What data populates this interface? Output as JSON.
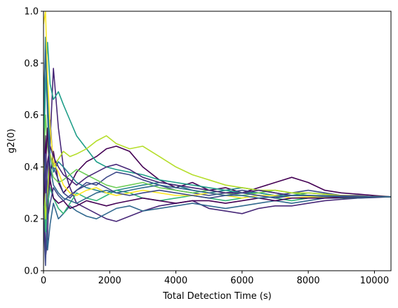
{
  "chart_data": {
    "type": "line",
    "title": "",
    "xlabel": "Total Detection Time (s)",
    "ylabel": "g2(0)",
    "xlim": [
      0,
      10500
    ],
    "ylim": [
      0.0,
      1.0
    ],
    "xticks": [
      0,
      2000,
      4000,
      6000,
      8000,
      10000
    ],
    "xtick_labels": [
      "0",
      "2000",
      "4000",
      "6000",
      "8000",
      "10000"
    ],
    "yticks": [
      0.0,
      0.2,
      0.4,
      0.6,
      0.8,
      1.0
    ],
    "ytick_labels": [
      "0.0",
      "0.2",
      "0.4",
      "0.6",
      "0.8",
      "1.0"
    ],
    "grid": false,
    "legend": "none",
    "colormap": "viridis",
    "colors": [
      "#440154",
      "#482878",
      "#3e4989",
      "#31688e",
      "#26828e",
      "#1f9e89",
      "#35b779",
      "#6ece58",
      "#b5de2b",
      "#fde725"
    ],
    "series": [
      {
        "x": [
          0,
          60,
          120,
          200,
          300,
          450,
          600,
          800,
          1000,
          1300,
          1600,
          1900,
          2200,
          2600,
          3000,
          3500,
          4000,
          4500,
          5000,
          5500,
          6000,
          6500,
          7000,
          7500,
          8000,
          8500,
          9000,
          9500,
          10000,
          10500
        ],
        "y": [
          0.3,
          0.52,
          0.22,
          0.36,
          0.46,
          0.34,
          0.3,
          0.33,
          0.38,
          0.42,
          0.44,
          0.47,
          0.48,
          0.46,
          0.4,
          0.35,
          0.32,
          0.34,
          0.31,
          0.32,
          0.3,
          0.32,
          0.34,
          0.36,
          0.34,
          0.31,
          0.3,
          0.295,
          0.29,
          0.285
        ]
      },
      {
        "x": [
          0,
          60,
          120,
          200,
          300,
          450,
          600,
          800,
          1000,
          1300,
          1600,
          1900,
          2200,
          2600,
          3000,
          3500,
          4000,
          4500,
          5000,
          5500,
          6000,
          6500,
          7000,
          7500,
          8000,
          8500,
          9000,
          9500,
          10000,
          10500
        ],
        "y": [
          0.4,
          0.05,
          0.12,
          0.5,
          0.78,
          0.55,
          0.4,
          0.32,
          0.26,
          0.24,
          0.22,
          0.2,
          0.19,
          0.21,
          0.23,
          0.25,
          0.26,
          0.27,
          0.24,
          0.23,
          0.22,
          0.24,
          0.25,
          0.25,
          0.26,
          0.27,
          0.275,
          0.28,
          0.282,
          0.285
        ]
      },
      {
        "x": [
          0,
          60,
          120,
          200,
          300,
          450,
          600,
          800,
          1000,
          1300,
          1600,
          1900,
          2200,
          2600,
          3000,
          3500,
          4000,
          4500,
          5000,
          5500,
          6000,
          6500,
          7000,
          7500,
          8000,
          8500,
          9000,
          9500,
          10000,
          10500
        ],
        "y": [
          0.2,
          0.02,
          0.3,
          0.58,
          0.4,
          0.35,
          0.3,
          0.28,
          0.31,
          0.34,
          0.33,
          0.36,
          0.38,
          0.37,
          0.35,
          0.33,
          0.31,
          0.3,
          0.29,
          0.3,
          0.31,
          0.3,
          0.29,
          0.3,
          0.31,
          0.3,
          0.29,
          0.29,
          0.285,
          0.285
        ]
      },
      {
        "x": [
          0,
          60,
          120,
          200,
          300,
          450,
          600,
          800,
          1000,
          1300,
          1600,
          1900,
          2200,
          2600,
          3000,
          3500,
          4000,
          4500,
          5000,
          5500,
          6000,
          6500,
          7000,
          7500,
          8000,
          8500,
          9000,
          9500,
          10000,
          10500
        ],
        "y": [
          0.6,
          0.25,
          0.08,
          0.18,
          0.26,
          0.2,
          0.22,
          0.25,
          0.23,
          0.21,
          0.2,
          0.22,
          0.24,
          0.25,
          0.23,
          0.24,
          0.25,
          0.26,
          0.25,
          0.24,
          0.25,
          0.26,
          0.27,
          0.26,
          0.27,
          0.28,
          0.28,
          0.28,
          0.283,
          0.285
        ]
      },
      {
        "x": [
          0,
          60,
          120,
          200,
          300,
          450,
          600,
          800,
          1000,
          1300,
          1600,
          1900,
          2200,
          2600,
          3000,
          3500,
          4000,
          4500,
          5000,
          5500,
          6000,
          6500,
          7000,
          7500,
          8000,
          8500,
          9000,
          9500,
          10000,
          10500
        ],
        "y": [
          0.5,
          0.9,
          0.7,
          0.45,
          0.38,
          0.42,
          0.4,
          0.37,
          0.34,
          0.32,
          0.31,
          0.3,
          0.31,
          0.32,
          0.33,
          0.34,
          0.33,
          0.31,
          0.3,
          0.31,
          0.32,
          0.31,
          0.3,
          0.29,
          0.3,
          0.295,
          0.29,
          0.288,
          0.286,
          0.285
        ]
      },
      {
        "x": [
          0,
          60,
          120,
          200,
          300,
          450,
          600,
          800,
          1000,
          1300,
          1600,
          1900,
          2200,
          2600,
          3000,
          3500,
          4000,
          4500,
          5000,
          5500,
          6000,
          6500,
          7000,
          7500,
          8000,
          8500,
          9000,
          9500,
          10000,
          10500
        ],
        "y": [
          0.45,
          0.7,
          0.88,
          0.72,
          0.66,
          0.69,
          0.64,
          0.58,
          0.52,
          0.47,
          0.42,
          0.4,
          0.39,
          0.38,
          0.37,
          0.35,
          0.34,
          0.33,
          0.32,
          0.31,
          0.3,
          0.3,
          0.29,
          0.29,
          0.29,
          0.288,
          0.287,
          0.286,
          0.285,
          0.285
        ]
      },
      {
        "x": [
          0,
          60,
          120,
          200,
          300,
          450,
          600,
          800,
          1000,
          1300,
          1600,
          1900,
          2200,
          2600,
          3000,
          3500,
          4000,
          4500,
          5000,
          5500,
          6000,
          6500,
          7000,
          7500,
          8000,
          8500,
          9000,
          9500,
          10000,
          10500
        ],
        "y": [
          0.35,
          0.15,
          0.25,
          0.32,
          0.28,
          0.24,
          0.22,
          0.26,
          0.3,
          0.28,
          0.27,
          0.29,
          0.31,
          0.3,
          0.28,
          0.27,
          0.28,
          0.29,
          0.28,
          0.27,
          0.28,
          0.29,
          0.28,
          0.27,
          0.28,
          0.285,
          0.28,
          0.283,
          0.284,
          0.285
        ]
      },
      {
        "x": [
          0,
          60,
          120,
          200,
          300,
          450,
          600,
          800,
          1000,
          1300,
          1600,
          1900,
          2200,
          2600,
          3000,
          3500,
          4000,
          4500,
          5000,
          5500,
          6000,
          6500,
          7000,
          7500,
          8000,
          8500,
          9000,
          9500,
          10000,
          10500
        ],
        "y": [
          0.38,
          0.6,
          0.48,
          0.4,
          0.36,
          0.34,
          0.35,
          0.37,
          0.39,
          0.37,
          0.35,
          0.33,
          0.32,
          0.33,
          0.34,
          0.32,
          0.31,
          0.3,
          0.31,
          0.3,
          0.29,
          0.3,
          0.31,
          0.3,
          0.29,
          0.29,
          0.288,
          0.287,
          0.286,
          0.285
        ]
      },
      {
        "x": [
          0,
          60,
          120,
          200,
          300,
          450,
          600,
          800,
          1000,
          1300,
          1600,
          1900,
          2200,
          2600,
          3000,
          3500,
          4000,
          4500,
          5000,
          5500,
          6000,
          6500,
          7000,
          7500,
          8000,
          8500,
          9000,
          9500,
          10000,
          10500
        ],
        "y": [
          0.42,
          0.2,
          0.3,
          0.45,
          0.4,
          0.43,
          0.46,
          0.44,
          0.45,
          0.47,
          0.5,
          0.52,
          0.49,
          0.47,
          0.48,
          0.44,
          0.4,
          0.37,
          0.35,
          0.33,
          0.32,
          0.31,
          0.31,
          0.3,
          0.3,
          0.295,
          0.29,
          0.288,
          0.286,
          0.285
        ]
      },
      {
        "x": [
          0,
          60,
          120,
          200,
          300,
          450,
          600,
          800,
          1000,
          1300,
          1600,
          1900,
          2200,
          2600,
          3000,
          3500,
          4000,
          4500,
          5000,
          5500,
          6000,
          6500,
          7000,
          7500,
          8000,
          8500,
          9000,
          9500,
          10000,
          10500
        ],
        "y": [
          0.95,
          1.0,
          0.75,
          0.55,
          0.42,
          0.38,
          0.33,
          0.3,
          0.29,
          0.31,
          0.32,
          0.3,
          0.29,
          0.3,
          0.31,
          0.3,
          0.29,
          0.29,
          0.3,
          0.29,
          0.28,
          0.29,
          0.29,
          0.28,
          0.285,
          0.285,
          0.284,
          0.285,
          0.285,
          0.285
        ]
      },
      {
        "x": [
          0,
          60,
          120,
          200,
          300,
          450,
          600,
          800,
          1000,
          1300,
          1600,
          1900,
          2200,
          2600,
          3000,
          3500,
          4000,
          4500,
          5000,
          5500,
          6000,
          6500,
          7000,
          7500,
          8000,
          8500,
          9000,
          9500,
          10000,
          10500
        ],
        "y": [
          0.25,
          0.4,
          0.55,
          0.35,
          0.28,
          0.26,
          0.27,
          0.24,
          0.25,
          0.27,
          0.26,
          0.25,
          0.26,
          0.27,
          0.28,
          0.27,
          0.26,
          0.27,
          0.27,
          0.26,
          0.27,
          0.28,
          0.27,
          0.28,
          0.28,
          0.28,
          0.282,
          0.283,
          0.284,
          0.285
        ]
      },
      {
        "x": [
          0,
          60,
          120,
          200,
          300,
          450,
          600,
          800,
          1000,
          1300,
          1600,
          1900,
          2200,
          2600,
          3000,
          3500,
          4000,
          4500,
          5000,
          5500,
          6000,
          6500,
          7000,
          7500,
          8000,
          8500,
          9000,
          9500,
          10000,
          10500
        ],
        "y": [
          0.55,
          0.3,
          0.42,
          0.48,
          0.44,
          0.4,
          0.37,
          0.35,
          0.33,
          0.36,
          0.38,
          0.4,
          0.41,
          0.39,
          0.36,
          0.34,
          0.33,
          0.32,
          0.31,
          0.3,
          0.3,
          0.31,
          0.3,
          0.29,
          0.29,
          0.289,
          0.288,
          0.287,
          0.286,
          0.285
        ]
      },
      {
        "x": [
          0,
          60,
          120,
          200,
          300,
          450,
          600,
          800,
          1000,
          1300,
          1600,
          1900,
          2200,
          2600,
          3000,
          3500,
          4000,
          4500,
          5000,
          5500,
          6000,
          6500,
          7000,
          7500,
          8000,
          8500,
          9000,
          9500,
          10000,
          10500
        ],
        "y": [
          0.3,
          0.45,
          0.2,
          0.26,
          0.32,
          0.29,
          0.27,
          0.29,
          0.31,
          0.33,
          0.34,
          0.32,
          0.3,
          0.29,
          0.3,
          0.31,
          0.3,
          0.29,
          0.28,
          0.29,
          0.3,
          0.29,
          0.28,
          0.29,
          0.29,
          0.286,
          0.285,
          0.285,
          0.285,
          0.285
        ]
      },
      {
        "x": [
          0,
          60,
          120,
          200,
          300,
          450,
          600,
          800,
          1000,
          1300,
          1600,
          1900,
          2200,
          2600,
          3000,
          3500,
          4000,
          4500,
          5000,
          5500,
          6000,
          6500,
          7000,
          7500,
          8000,
          8500,
          9000,
          9500,
          10000,
          10500
        ],
        "y": [
          0.65,
          0.85,
          0.6,
          0.4,
          0.33,
          0.3,
          0.28,
          0.27,
          0.26,
          0.28,
          0.3,
          0.31,
          0.3,
          0.31,
          0.32,
          0.33,
          0.32,
          0.31,
          0.3,
          0.29,
          0.29,
          0.28,
          0.285,
          0.29,
          0.29,
          0.288,
          0.286,
          0.285,
          0.285,
          0.285
        ]
      }
    ]
  }
}
